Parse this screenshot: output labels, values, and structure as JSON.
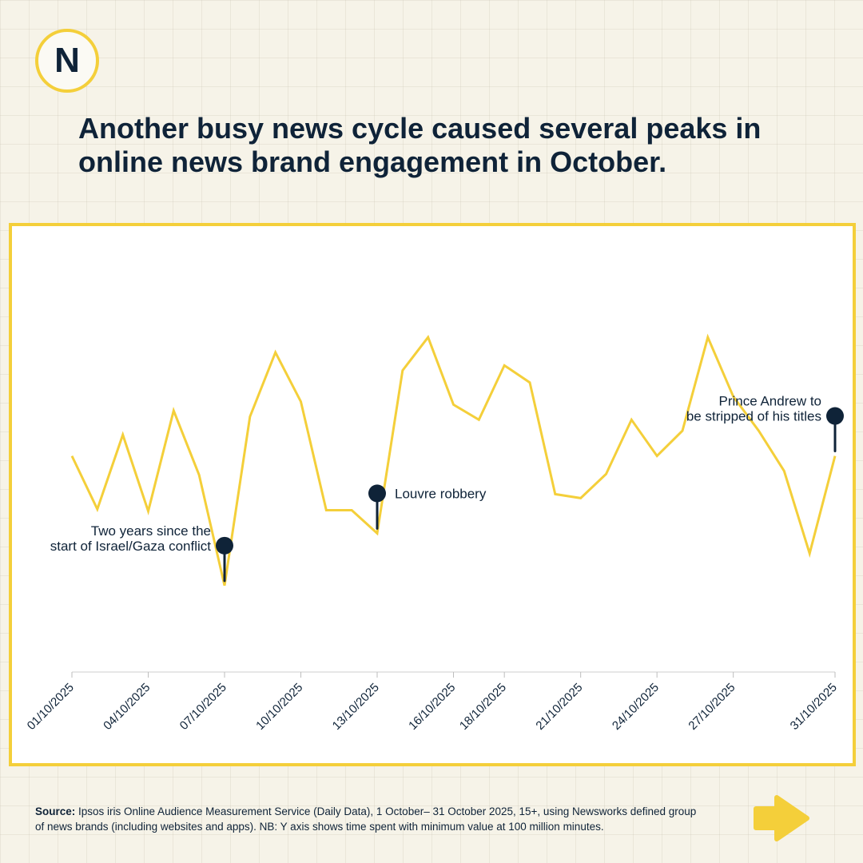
{
  "brand": {
    "logo_letter": "N",
    "accent": "#f4cf3a",
    "ink": "#0f2338"
  },
  "headline": "Another busy news cycle caused several peaks in online news brand engagement in October.",
  "chart_data": {
    "type": "line",
    "title": "",
    "xlabel": "",
    "ylabel": "",
    "x_ticks": [
      "01/10/2025",
      "04/10/2025",
      "07/10/2025",
      "10/10/2025",
      "13/10/2025",
      "16/10/2025",
      "18/10/2025",
      "21/10/2025",
      "24/10/2025",
      "27/10/2025",
      "31/10/2025"
    ],
    "x": [
      "01/10/2025",
      "02/10/2025",
      "03/10/2025",
      "04/10/2025",
      "05/10/2025",
      "06/10/2025",
      "07/10/2025",
      "08/10/2025",
      "09/10/2025",
      "10/10/2025",
      "11/10/2025",
      "12/10/2025",
      "13/10/2025",
      "14/10/2025",
      "15/10/2025",
      "16/10/2025",
      "17/10/2025",
      "18/10/2025",
      "19/10/2025",
      "20/10/2025",
      "21/10/2025",
      "22/10/2025",
      "23/10/2025",
      "24/10/2025",
      "25/10/2025",
      "26/10/2025",
      "27/10/2025",
      "28/10/2025",
      "29/10/2025",
      "30/10/2025",
      "31/10/2025"
    ],
    "series": [
      {
        "values": [
          595,
          542,
          616,
          540,
          640,
          576,
          466,
          634,
          698,
          649,
          541,
          541,
          518,
          680,
          713,
          646,
          631,
          685,
          668,
          557,
          553,
          577,
          631,
          595,
          620,
          713,
          654,
          620,
          580,
          498,
          595
        ]
      }
    ],
    "line_color": "#f4cf3a",
    "annotations": [
      {
        "x": "07/10/2025",
        "lines": [
          "Two years since the",
          "start of Israel/Gaza conflict"
        ],
        "side": "left"
      },
      {
        "x": "13/10/2025",
        "lines": [
          "Louvre robbery"
        ],
        "side": "right"
      },
      {
        "x": "31/10/2025",
        "lines": [
          "Prince Andrew to",
          "be stripped of his titles"
        ],
        "side": "left"
      }
    ],
    "grid": false,
    "legend": "none"
  },
  "source": {
    "label": "Source:",
    "text": " Ipsos iris Online Audience Measurement Service (Daily Data), 1 October– 31 October 2025, 15+, using Newsworks defined group of news brands (including websites and apps). NB: Y axis shows time spent with minimum value at 100 million minutes."
  },
  "nav": {
    "next_icon": "arrow-right-icon"
  }
}
